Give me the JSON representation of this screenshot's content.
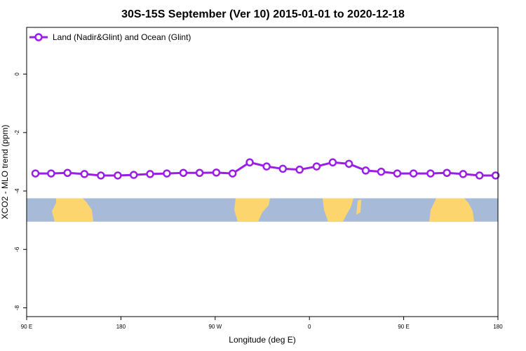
{
  "chart_data": {
    "type": "line",
    "title": "30S-15S September (Ver 10)   2015-01-01 to 2020-12-18",
    "xlabel": "Longitude (deg E)",
    "ylabel": "XCO2 - MLO trend (ppm)",
    "xlim": [
      90,
      450
    ],
    "ylim": [
      -8.3,
      1.6
    ],
    "x_ticks": [
      {
        "value": 90,
        "label": "90 E"
      },
      {
        "value": 162,
        "label": "180"
      },
      {
        "value": 234,
        "label": "90 W"
      },
      {
        "value": 306,
        "label": "0"
      },
      {
        "value": 378,
        "label": "90 E"
      },
      {
        "value": 450,
        "label": "180"
      }
    ],
    "y_ticks": [
      0,
      -2,
      -4,
      -6,
      -8
    ],
    "legend_position": "top-left",
    "series": [
      {
        "name": "Land (Nadir&Glint) and Ocean (Glint)",
        "color": "#9b1ee6",
        "x": [
          96.7,
          108.7,
          121.2,
          134.1,
          146.7,
          159.6,
          171.8,
          184.3,
          197.1,
          209.7,
          222.1,
          234.9,
          247.3,
          260.4,
          273.3,
          285.7,
          298.5,
          311.5,
          323.8,
          336.2,
          349.0,
          360.8,
          373.1,
          385.5,
          398.5,
          411.0,
          423.4,
          435.9,
          448.2
        ],
        "values": [
          -3.4,
          -3.4,
          -3.38,
          -3.42,
          -3.47,
          -3.47,
          -3.45,
          -3.42,
          -3.4,
          -3.38,
          -3.38,
          -3.37,
          -3.4,
          -3.02,
          -3.16,
          -3.24,
          -3.27,
          -3.16,
          -3.02,
          -3.07,
          -3.3,
          -3.34,
          -3.4,
          -3.4,
          -3.4,
          -3.38,
          -3.42,
          -3.47,
          -3.47
        ]
      }
    ],
    "background_map": {
      "y_range": [
        -5.05,
        -4.25
      ],
      "ocean_color": "#a7bbd9",
      "land_color": "#fdd56f"
    }
  }
}
